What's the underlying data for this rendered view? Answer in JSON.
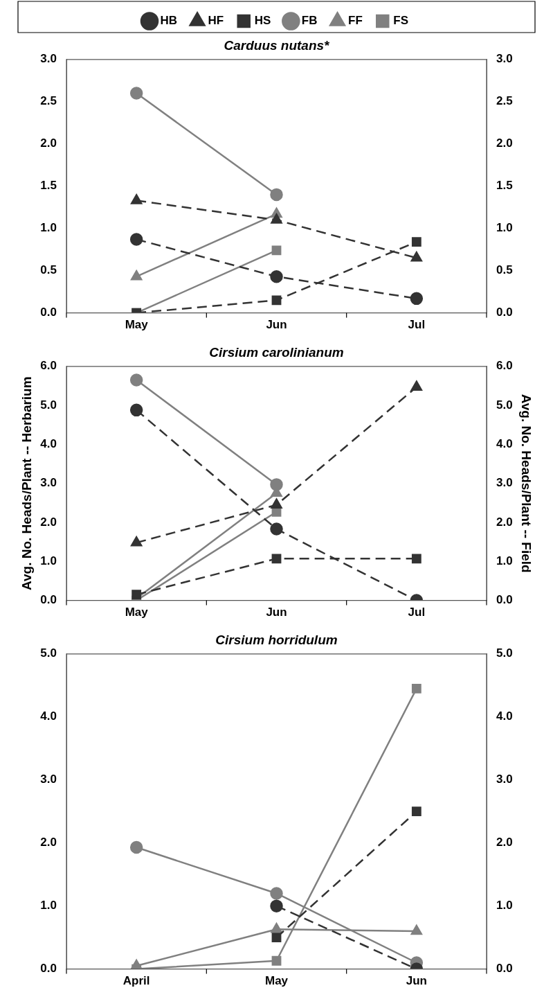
{
  "chart_data": [
    {
      "type": "line",
      "title": "Carduus nutans*",
      "categories": [
        "May",
        "Jun",
        "Jul"
      ],
      "legend": "top",
      "grid": false,
      "ylim": [
        0,
        3
      ],
      "yticks": [
        {
          "value": 0,
          "label": "0.0"
        },
        {
          "value": 0.5,
          "label": "0.5"
        },
        {
          "value": 1,
          "label": "1.0"
        },
        {
          "value": 1.5,
          "label": "1.5"
        },
        {
          "value": 2,
          "label": "2.0"
        },
        {
          "value": 2.5,
          "label": "2.5"
        },
        {
          "value": 3,
          "label": "3.0"
        }
      ],
      "y2lim": [
        0,
        3
      ],
      "y2ticks": [
        {
          "value": 0,
          "label": "0.0"
        },
        {
          "value": 0.5,
          "label": "0.5"
        },
        {
          "value": 1,
          "label": "1.0"
        },
        {
          "value": 1.5,
          "label": "1.5"
        },
        {
          "value": 2,
          "label": "2.0"
        },
        {
          "value": 2.5,
          "label": "2.5"
        },
        {
          "value": 3,
          "label": "3.0"
        }
      ],
      "series": [
        {
          "name": "HB",
          "color": "#333333",
          "marker": "circle",
          "line_style": "dashed",
          "values": [
            0.87,
            0.43,
            0.17
          ]
        },
        {
          "name": "HF",
          "color": "#333333",
          "marker": "triangle",
          "line_style": "dashed",
          "values": [
            1.33,
            1.1,
            0.65
          ]
        },
        {
          "name": "HS",
          "color": "#333333",
          "marker": "square",
          "line_style": "dashed",
          "values": [
            0.0,
            0.15,
            0.84
          ]
        },
        {
          "name": "FB",
          "color": "#808080",
          "marker": "circle",
          "line_style": "solid",
          "values": [
            2.6,
            1.4,
            null
          ]
        },
        {
          "name": "FF",
          "color": "#808080",
          "marker": "triangle",
          "line_style": "solid",
          "values": [
            0.43,
            1.17,
            null
          ]
        },
        {
          "name": "FS",
          "color": "#808080",
          "marker": "square",
          "line_style": "solid",
          "values": [
            0.0,
            0.74,
            null
          ]
        }
      ]
    },
    {
      "type": "line",
      "title": "Cirsium carolinianum",
      "categories": [
        "May",
        "Jun",
        "Jul"
      ],
      "grid": false,
      "ylabel": "Avg. No. Heads/Plant -- Herbarium",
      "y2label": "Avg. No. Heads/Plant -- Field",
      "ylim": [
        0,
        6
      ],
      "yticks": [
        {
          "value": 0,
          "label": "0.0"
        },
        {
          "value": 1,
          "label": "1.0"
        },
        {
          "value": 2,
          "label": "2.0"
        },
        {
          "value": 3,
          "label": "3.0"
        },
        {
          "value": 4,
          "label": "4.0"
        },
        {
          "value": 5,
          "label": "5.0"
        },
        {
          "value": 6,
          "label": "6.0"
        }
      ],
      "y2lim": [
        0,
        6
      ],
      "y2ticks": [
        {
          "value": 0,
          "label": "0.0"
        },
        {
          "value": 1,
          "label": "1.0"
        },
        {
          "value": 2,
          "label": "2.0"
        },
        {
          "value": 3,
          "label": "3.0"
        },
        {
          "value": 4,
          "label": "4.0"
        },
        {
          "value": 5,
          "label": "5.0"
        },
        {
          "value": 6,
          "label": "6.0"
        }
      ],
      "series": [
        {
          "color": "#333333",
          "marker": "circle",
          "line_style": "dashed",
          "values": [
            4.88,
            1.83,
            0.0
          ]
        },
        {
          "color": "#333333",
          "marker": "triangle",
          "line_style": "dashed",
          "values": [
            1.48,
            2.45,
            5.47
          ]
        },
        {
          "color": "#333333",
          "marker": "square",
          "line_style": "dashed",
          "values": [
            0.15,
            1.07,
            1.07
          ]
        },
        {
          "color": "#808080",
          "marker": "circle",
          "line_style": "solid",
          "values": [
            5.65,
            2.97,
            null
          ]
        },
        {
          "color": "#808080",
          "marker": "triangle",
          "line_style": "solid",
          "values": [
            0.05,
            2.75,
            null
          ]
        },
        {
          "color": "#808080",
          "marker": "square",
          "line_style": "solid",
          "values": [
            0.0,
            2.27,
            null
          ]
        }
      ]
    },
    {
      "type": "line",
      "title": "Cirsium horridulum",
      "categories": [
        "April",
        "May",
        "Jun"
      ],
      "grid": false,
      "ylim": [
        0,
        5
      ],
      "yticks": [
        {
          "value": 0,
          "label": "0.0"
        },
        {
          "value": 1,
          "label": "1.0"
        },
        {
          "value": 2,
          "label": "2.0"
        },
        {
          "value": 3,
          "label": "3.0"
        },
        {
          "value": 4,
          "label": "4.0"
        },
        {
          "value": 5,
          "label": "5.0"
        }
      ],
      "y2lim": [
        0,
        5
      ],
      "y2ticks": [
        {
          "value": 0,
          "label": "0.0"
        },
        {
          "value": 1,
          "label": "1.0"
        },
        {
          "value": 2,
          "label": "2.0"
        },
        {
          "value": 3,
          "label": "3.0"
        },
        {
          "value": 4,
          "label": "4.0"
        },
        {
          "value": 5,
          "label": "5.0"
        }
      ],
      "series": [
        {
          "color": "#333333",
          "marker": "circle",
          "line_style": "dashed",
          "values": [
            null,
            1.0,
            0.0
          ]
        },
        {
          "color": "#333333",
          "marker": "triangle",
          "line_style": "dashed",
          "values": [
            null,
            null,
            null
          ]
        },
        {
          "color": "#333333",
          "marker": "square",
          "line_style": "dashed",
          "values": [
            null,
            0.5,
            2.5
          ]
        },
        {
          "color": "#808080",
          "marker": "circle",
          "line_style": "solid",
          "values": [
            1.93,
            1.2,
            0.1
          ]
        },
        {
          "color": "#808080",
          "marker": "triangle",
          "line_style": "solid",
          "values": [
            0.05,
            0.63,
            0.6
          ]
        },
        {
          "color": "#808080",
          "marker": "square",
          "line_style": "solid",
          "values": [
            0.0,
            0.13,
            4.45
          ]
        }
      ]
    }
  ]
}
